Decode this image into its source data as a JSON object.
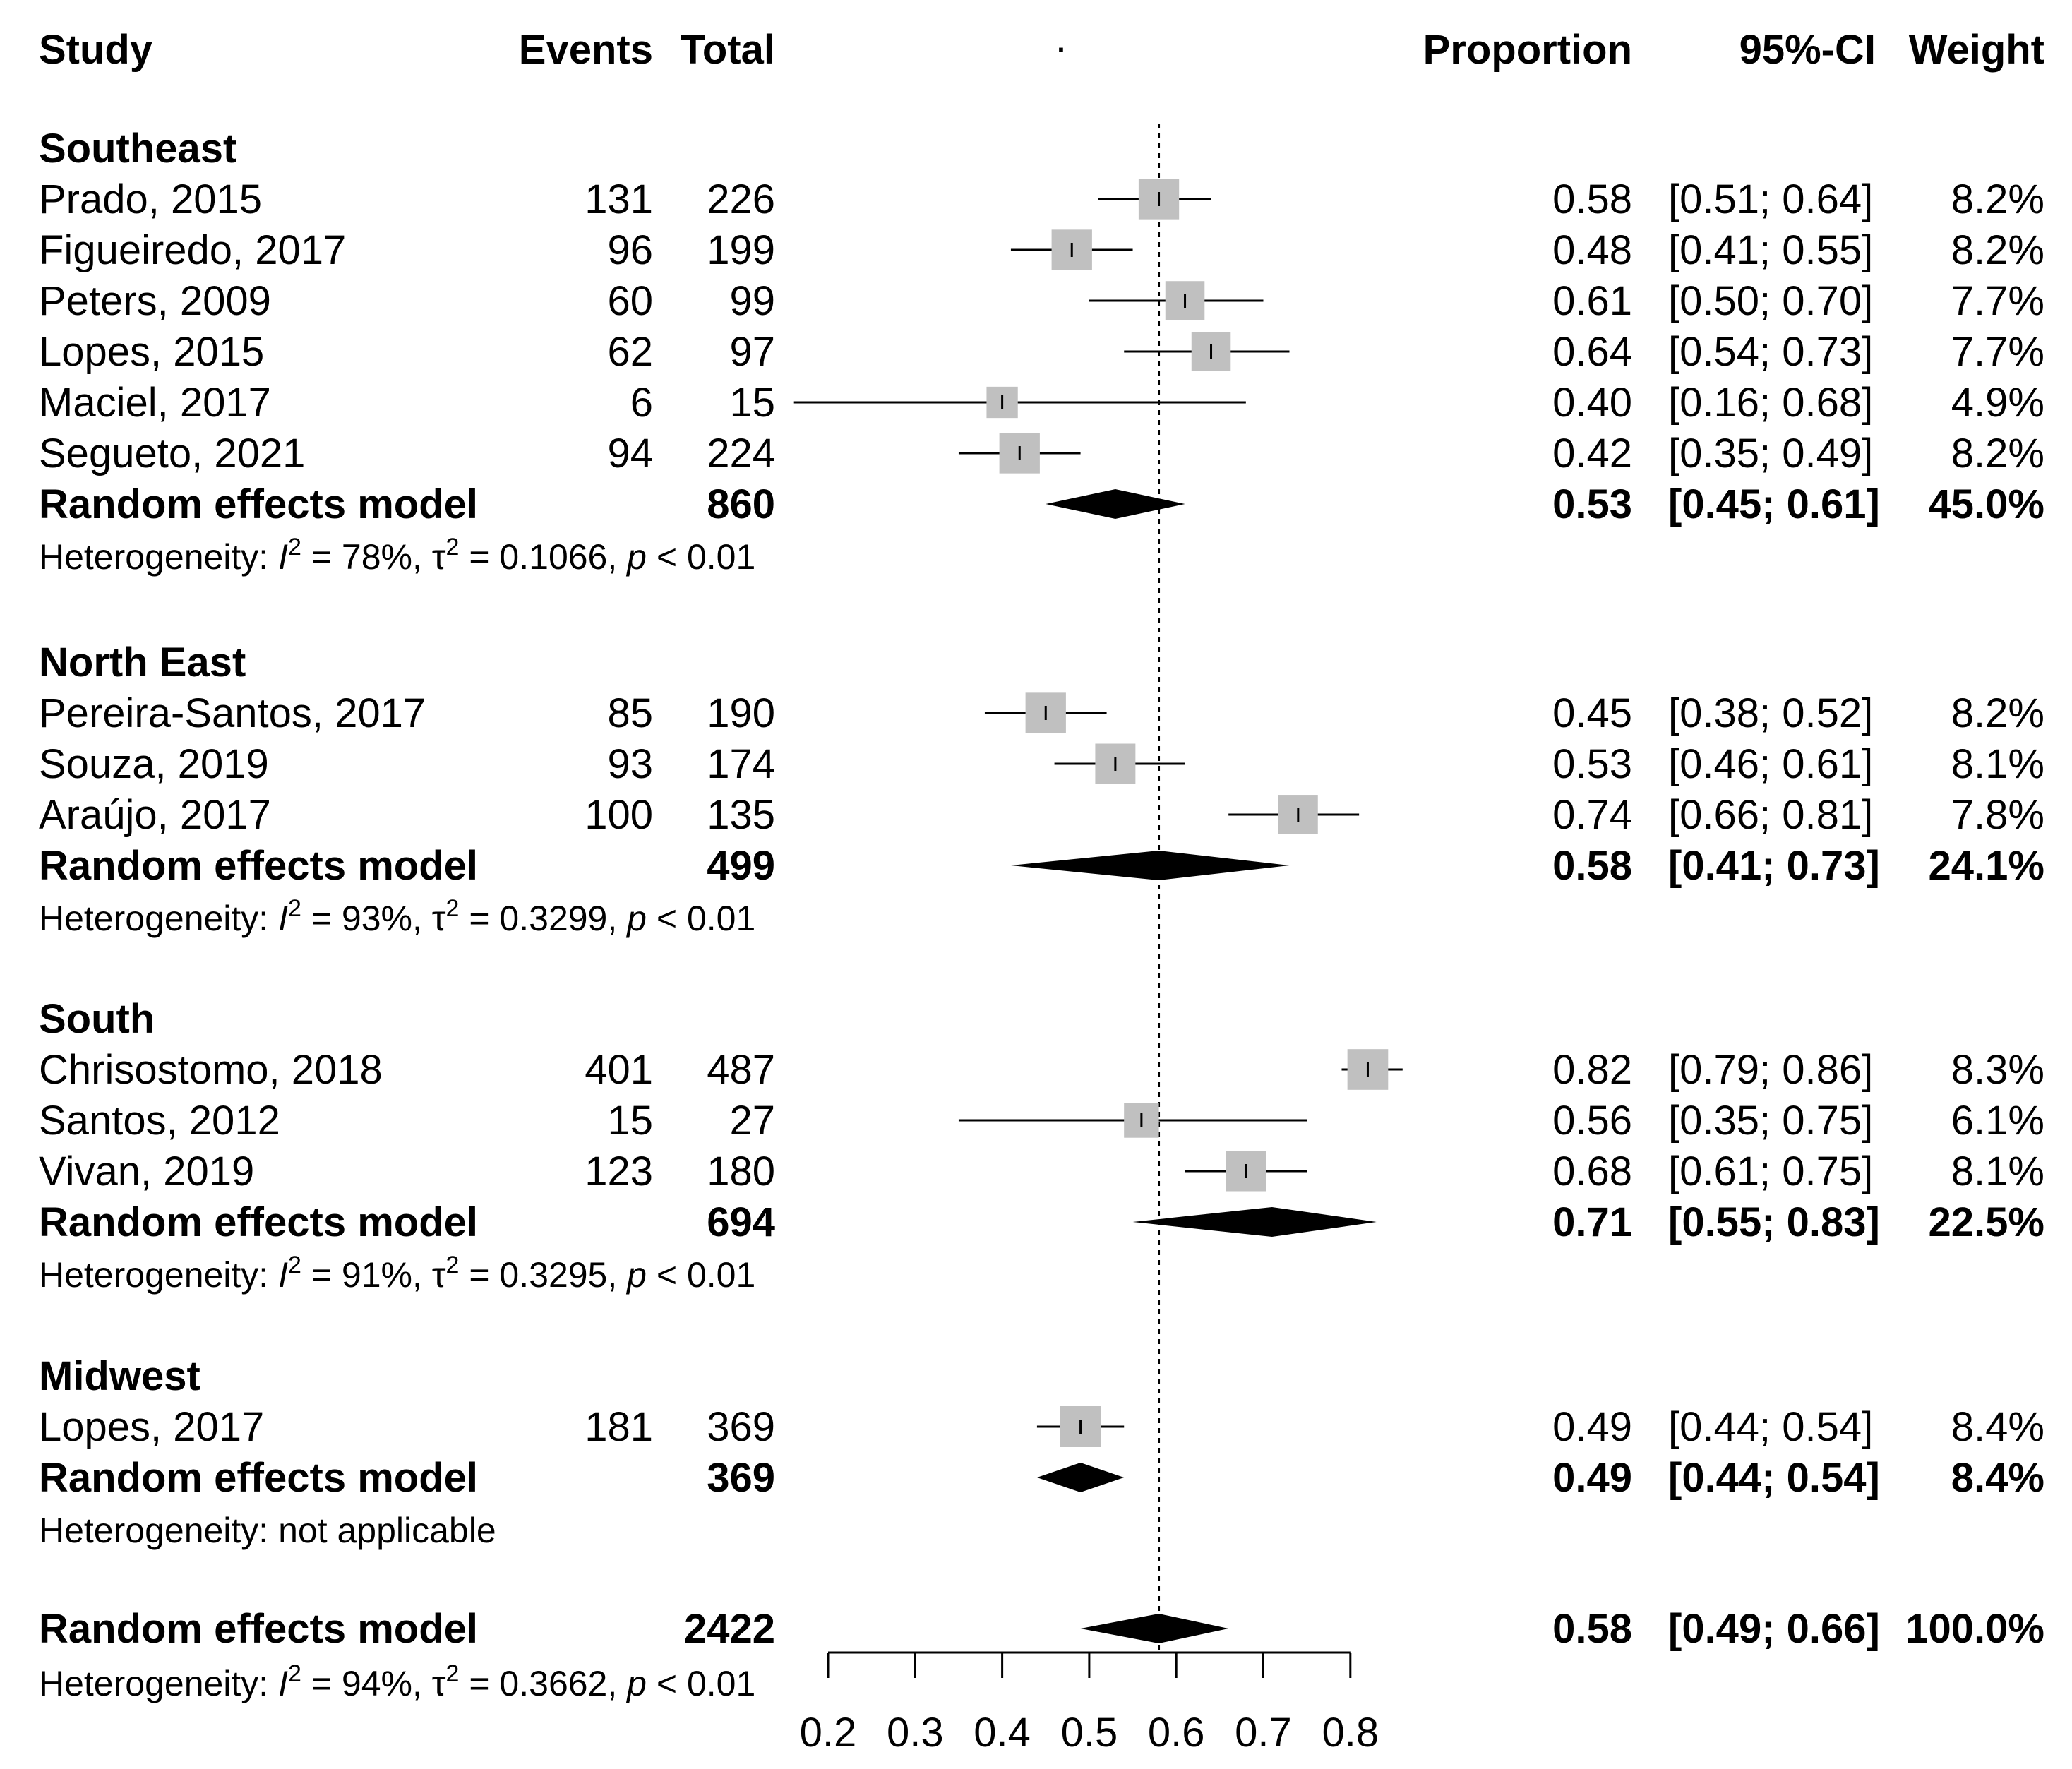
{
  "headers": {
    "study": "Study",
    "events": "Events",
    "total": "Total",
    "dot": "·",
    "proportion": "Proportion",
    "ci": "95%-CI",
    "weight": "Weight"
  },
  "chart_data": {
    "type": "forest",
    "axis": {
      "ticks": [
        0.2,
        0.3,
        0.4,
        0.5,
        0.6,
        0.7,
        0.8
      ],
      "tick_labels": [
        "0.2",
        "0.3",
        "0.4",
        "0.5",
        "0.6",
        "0.7",
        "0.8"
      ],
      "range": [
        0.2,
        0.8
      ],
      "reference_line": 0.58
    },
    "groups": [
      {
        "name": "Southeast",
        "studies": [
          {
            "study": "Prado, 2015",
            "events": "131",
            "total": "226",
            "proportion": "0.58",
            "ci": "[0.51; 0.64]",
            "weight": "8.2%",
            "est": 0.58,
            "lower": 0.51,
            "upper": 0.64,
            "w": 8.2
          },
          {
            "study": "Figueiredo, 2017",
            "events": "96",
            "total": "199",
            "proportion": "0.48",
            "ci": "[0.41; 0.55]",
            "weight": "8.2%",
            "est": 0.48,
            "lower": 0.41,
            "upper": 0.55,
            "w": 8.2
          },
          {
            "study": "Peters, 2009",
            "events": "60",
            "total": "99",
            "proportion": "0.61",
            "ci": "[0.50; 0.70]",
            "weight": "7.7%",
            "est": 0.61,
            "lower": 0.5,
            "upper": 0.7,
            "w": 7.7
          },
          {
            "study": "Lopes, 2015",
            "events": "62",
            "total": "97",
            "proportion": "0.64",
            "ci": "[0.54; 0.73]",
            "weight": "7.7%",
            "est": 0.64,
            "lower": 0.54,
            "upper": 0.73,
            "w": 7.7
          },
          {
            "study": "Maciel, 2017",
            "events": "6",
            "total": "15",
            "proportion": "0.40",
            "ci": "[0.16; 0.68]",
            "weight": "4.9%",
            "est": 0.4,
            "lower": 0.16,
            "upper": 0.68,
            "w": 4.9
          },
          {
            "study": "Segueto, 2021",
            "events": "94",
            "total": "224",
            "proportion": "0.42",
            "ci": "[0.35; 0.49]",
            "weight": "8.2%",
            "est": 0.42,
            "lower": 0.35,
            "upper": 0.49,
            "w": 8.2
          }
        ],
        "model": {
          "label": "Random effects model",
          "total": "860",
          "proportion": "0.53",
          "ci": "[0.45; 0.61]",
          "weight": "45.0%",
          "est": 0.53,
          "lower": 0.45,
          "upper": 0.61
        },
        "heterogeneity": {
          "prefix": "Heterogeneity: ",
          "i_sym": "I",
          "i2": "2",
          "i_val": " = 78%, ",
          "tau": "τ",
          "tau2": "2",
          "tau_val": " = 0.1066, ",
          "p": "p",
          "p_val": " < 0.01"
        }
      },
      {
        "name": "North East",
        "studies": [
          {
            "study": "Pereira-Santos, 2017",
            "events": "85",
            "total": "190",
            "proportion": "0.45",
            "ci": "[0.38; 0.52]",
            "weight": "8.2%",
            "est": 0.45,
            "lower": 0.38,
            "upper": 0.52,
            "w": 8.2
          },
          {
            "study": "Souza, 2019",
            "events": "93",
            "total": "174",
            "proportion": "0.53",
            "ci": "[0.46; 0.61]",
            "weight": "8.1%",
            "est": 0.53,
            "lower": 0.46,
            "upper": 0.61,
            "w": 8.1
          },
          {
            "study": "Araújo, 2017",
            "events": "100",
            "total": "135",
            "proportion": "0.74",
            "ci": "[0.66; 0.81]",
            "weight": "7.8%",
            "est": 0.74,
            "lower": 0.66,
            "upper": 0.81,
            "w": 7.8
          }
        ],
        "model": {
          "label": "Random effects model",
          "total": "499",
          "proportion": "0.58",
          "ci": "[0.41; 0.73]",
          "weight": "24.1%",
          "est": 0.58,
          "lower": 0.41,
          "upper": 0.73
        },
        "heterogeneity": {
          "prefix": "Heterogeneity: ",
          "i_sym": "I",
          "i2": "2",
          "i_val": " = 93%, ",
          "tau": "τ",
          "tau2": "2",
          "tau_val": " = 0.3299, ",
          "p": "p",
          "p_val": " < 0.01"
        }
      },
      {
        "name": "South",
        "studies": [
          {
            "study": "Chrisostomo, 2018",
            "events": "401",
            "total": "487",
            "proportion": "0.82",
            "ci": "[0.79; 0.86]",
            "weight": "8.3%",
            "est": 0.82,
            "lower": 0.79,
            "upper": 0.86,
            "w": 8.3
          },
          {
            "study": "Santos, 2012",
            "events": "15",
            "total": "27",
            "proportion": "0.56",
            "ci": "[0.35; 0.75]",
            "weight": "6.1%",
            "est": 0.56,
            "lower": 0.35,
            "upper": 0.75,
            "w": 6.1
          },
          {
            "study": "Vivan, 2019",
            "events": "123",
            "total": "180",
            "proportion": "0.68",
            "ci": "[0.61; 0.75]",
            "weight": "8.1%",
            "est": 0.68,
            "lower": 0.61,
            "upper": 0.75,
            "w": 8.1
          }
        ],
        "model": {
          "label": "Random effects model",
          "total": "694",
          "proportion": "0.71",
          "ci": "[0.55; 0.83]",
          "weight": "22.5%",
          "est": 0.71,
          "lower": 0.55,
          "upper": 0.83
        },
        "heterogeneity": {
          "prefix": "Heterogeneity: ",
          "i_sym": "I",
          "i2": "2",
          "i_val": " = 91%, ",
          "tau": "τ",
          "tau2": "2",
          "tau_val": " = 0.3295, ",
          "p": "p",
          "p_val": " < 0.01"
        }
      },
      {
        "name": "Midwest",
        "studies": [
          {
            "study": "Lopes, 2017",
            "events": "181",
            "total": "369",
            "proportion": "0.49",
            "ci": "[0.44; 0.54]",
            "weight": "8.4%",
            "est": 0.49,
            "lower": 0.44,
            "upper": 0.54,
            "w": 8.4
          }
        ],
        "model": {
          "label": "Random effects model",
          "total": "369",
          "proportion": "0.49",
          "ci": "[0.44; 0.54]",
          "weight": "8.4%",
          "est": 0.49,
          "lower": 0.44,
          "upper": 0.54
        },
        "heterogeneity": {
          "prefix": "Heterogeneity: not applicable"
        }
      }
    ],
    "overall": {
      "label": "Random effects model",
      "total": "2422",
      "proportion": "0.58",
      "ci": "[0.49; 0.66]",
      "weight": "100.0%",
      "est": 0.58,
      "lower": 0.49,
      "upper": 0.66,
      "heterogeneity": {
        "prefix": "Heterogeneity: ",
        "i_sym": "I",
        "i2": "2",
        "i_val": " = 94%, ",
        "tau": "τ",
        "tau2": "2",
        "tau_val": " = 0.3662, ",
        "p": "p",
        "p_val": " < 0.01"
      }
    }
  }
}
